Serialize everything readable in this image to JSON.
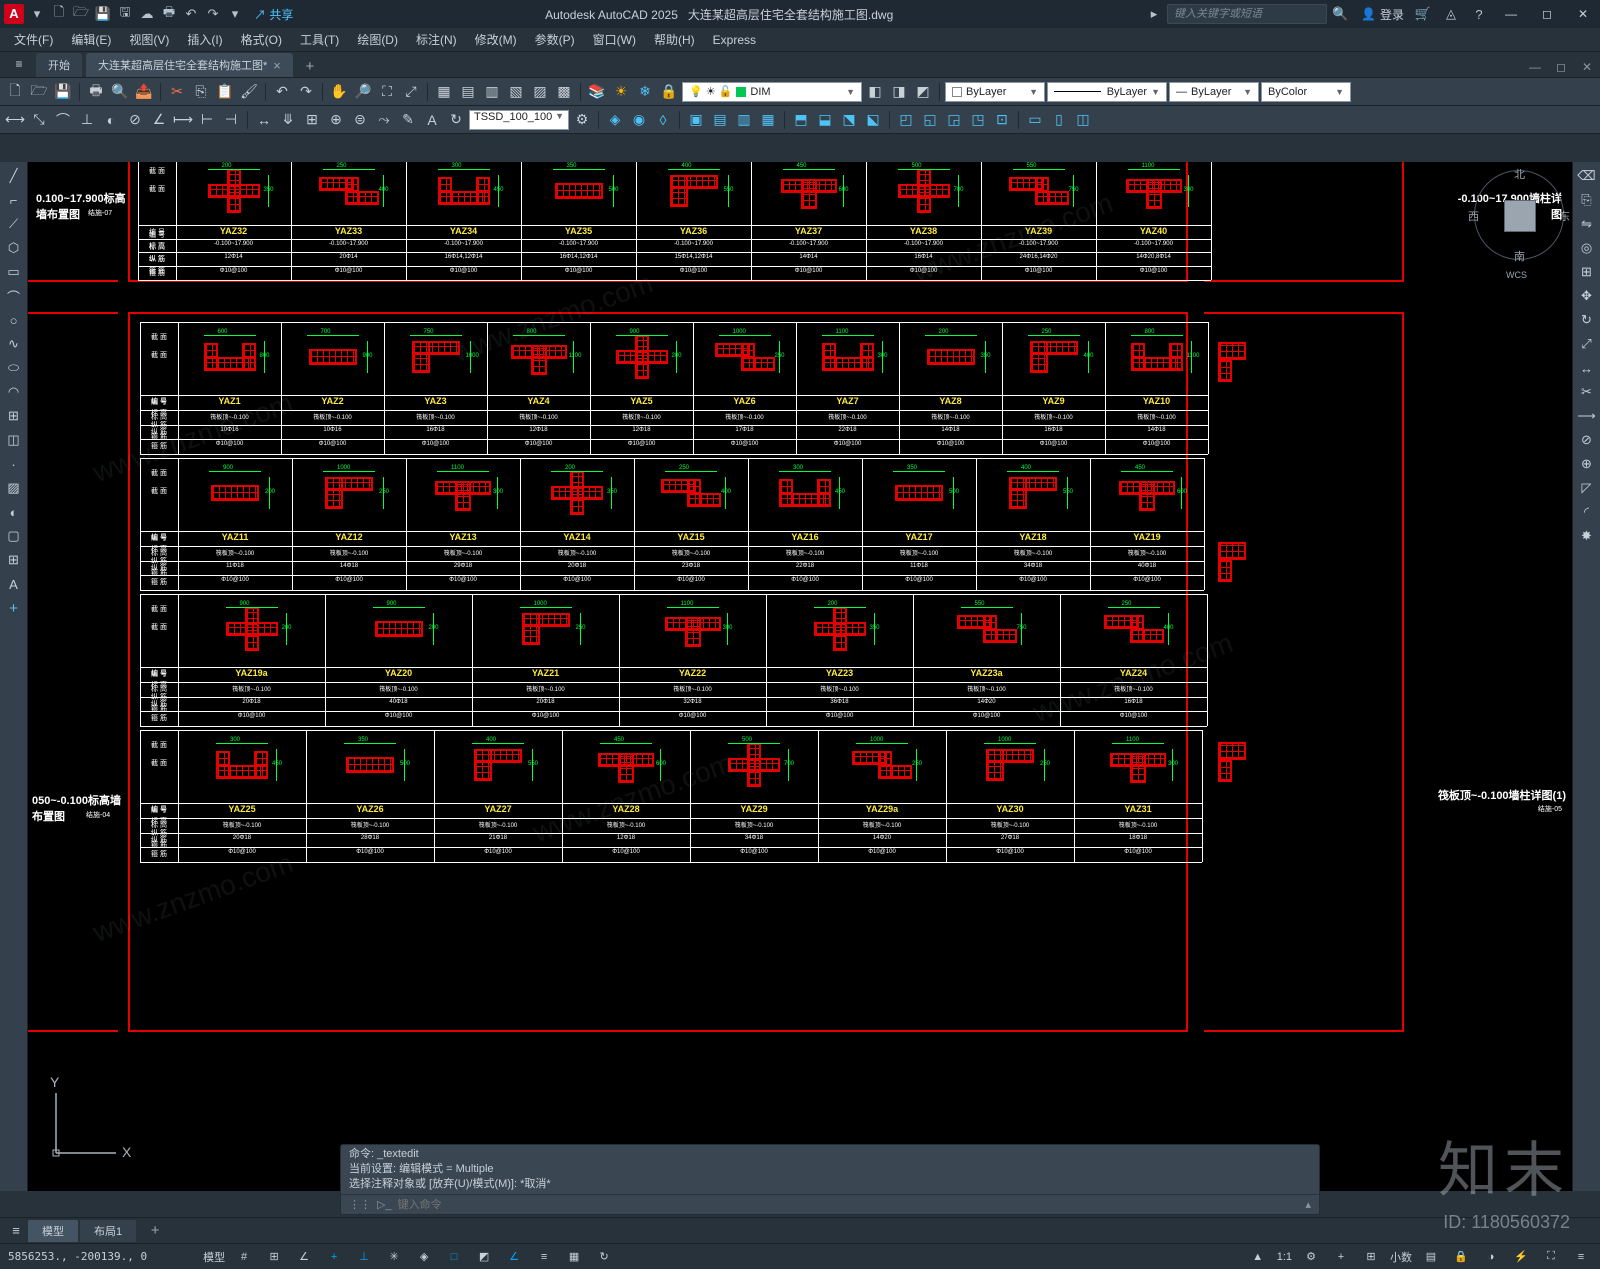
{
  "app": {
    "badge": "A",
    "title_product": "Autodesk AutoCAD 2025",
    "title_file": "大连某超高层住宅全套结构施工图.dwg",
    "search_placeholder": "键入关键字或短语",
    "login": "登录",
    "share": "共享"
  },
  "menus": [
    "文件(F)",
    "编辑(E)",
    "视图(V)",
    "插入(I)",
    "格式(O)",
    "工具(T)",
    "绘图(D)",
    "标注(N)",
    "修改(M)",
    "参数(P)",
    "窗口(W)",
    "帮助(H)",
    "Express"
  ],
  "filetabs": {
    "home": "开始",
    "active": "大连某超高层住宅全套结构施工图*"
  },
  "layer": {
    "name": "DIM",
    "current": "ByLayer",
    "linetype": "ByLayer",
    "lineweight": "ByLayer",
    "color": "ByColor",
    "tssd": "TSSD_100_100"
  },
  "viewcube": {
    "n": "北",
    "s": "南",
    "e": "东",
    "w": "西",
    "wcs": "WCS"
  },
  "ucs": {
    "x": "X",
    "y": "Y"
  },
  "cmd": {
    "h1": "命令: _textedit",
    "h2": "当前设置: 编辑模式 = Multiple",
    "h3": "选择注释对象或 [放弃(U)/模式(M)]: *取消*",
    "prompt": "键入命令"
  },
  "layout_tabs": {
    "model": "模型",
    "layout1": "布局1"
  },
  "status": {
    "coords": "5856253., -200139., 0",
    "model": "模型",
    "scale": "1:1",
    "decimal": "小数"
  },
  "sheets": {
    "left_top": "0.100~17.900标高墙布置图",
    "left_bot": "050~-0.100标高墙布置图",
    "right_top": "-0.100~17.900墙柱详图",
    "right_bot": "筏板顶~-0.100墙柱详图(1)",
    "code_top": "结施-07",
    "code_bot": "结施-04",
    "code_r": "结施-05"
  },
  "row_hdrs": [
    "截 面",
    "编 号",
    "标 高",
    "纵 筋",
    "箍 筋"
  ],
  "cols_top": [
    {
      "id": "YAZ32",
      "e": "-0.100~17.900",
      "r": "12Φ14",
      "s": "Φ10@100"
    },
    {
      "id": "YAZ33",
      "e": "-0.100~17.900",
      "r": "20Φ14",
      "s": "Φ10@100"
    },
    {
      "id": "YAZ34",
      "e": "-0.100~17.900",
      "r": "16Φ14,12Φ14",
      "s": "Φ10@100"
    },
    {
      "id": "YAZ35",
      "e": "-0.100~17.900",
      "r": "16Φ14,12Φ14",
      "s": "Φ10@100"
    },
    {
      "id": "YAZ36",
      "e": "-0.100~17.900",
      "r": "15Φ14,12Φ14",
      "s": "Φ10@100"
    },
    {
      "id": "YAZ37",
      "e": "-0.100~17.900",
      "r": "14Φ14",
      "s": "Φ10@100"
    },
    {
      "id": "YAZ38",
      "e": "-0.100~17.900",
      "r": "16Φ14",
      "s": "Φ10@100"
    },
    {
      "id": "YAZ39",
      "e": "-0.100~17.900",
      "r": "24Φ16,14Φ20",
      "s": "Φ10@100"
    },
    {
      "id": "YAZ40",
      "e": "-0.100~17.900",
      "r": "14Φ20,8Φ14",
      "s": "Φ10@100"
    }
  ],
  "rows_main": [
    [
      {
        "id": "YAZ1",
        "e": "筏板顶~-0.100",
        "r": "10Φ16",
        "s": "Φ10@100"
      },
      {
        "id": "YAZ2",
        "e": "筏板顶~-0.100",
        "r": "10Φ16",
        "s": "Φ10@100"
      },
      {
        "id": "YAZ3",
        "e": "筏板顶~-0.100",
        "r": "16Φ18",
        "s": "Φ10@100"
      },
      {
        "id": "YAZ4",
        "e": "筏板顶~-0.100",
        "r": "12Φ18",
        "s": "Φ10@100"
      },
      {
        "id": "YAZ5",
        "e": "筏板顶~-0.100",
        "r": "12Φ18",
        "s": "Φ10@100"
      },
      {
        "id": "YAZ6",
        "e": "筏板顶~-0.100",
        "r": "17Φ18",
        "s": "Φ10@100"
      },
      {
        "id": "YAZ7",
        "e": "筏板顶~-0.100",
        "r": "22Φ18",
        "s": "Φ10@100"
      },
      {
        "id": "YAZ8",
        "e": "筏板顶~-0.100",
        "r": "14Φ18",
        "s": "Φ10@100"
      },
      {
        "id": "YAZ9",
        "e": "筏板顶~-0.100",
        "r": "16Φ18",
        "s": "Φ10@100"
      },
      {
        "id": "YAZ10",
        "e": "筏板顶~-0.100",
        "r": "14Φ18",
        "s": "Φ10@100"
      }
    ],
    [
      {
        "id": "YAZ11",
        "e": "筏板顶~-0.100",
        "r": "11Φ18",
        "s": "Φ10@100"
      },
      {
        "id": "YAZ12",
        "e": "筏板顶~-0.100",
        "r": "14Φ18",
        "s": "Φ10@100"
      },
      {
        "id": "YAZ13",
        "e": "筏板顶~-0.100",
        "r": "29Φ18",
        "s": "Φ10@100"
      },
      {
        "id": "YAZ14",
        "e": "筏板顶~-0.100",
        "r": "20Φ18",
        "s": "Φ10@100"
      },
      {
        "id": "YAZ15",
        "e": "筏板顶~-0.100",
        "r": "23Φ18",
        "s": "Φ10@100"
      },
      {
        "id": "YAZ16",
        "e": "筏板顶~-0.100",
        "r": "22Φ18",
        "s": "Φ10@100"
      },
      {
        "id": "YAZ17",
        "e": "筏板顶~-0.100",
        "r": "11Φ18",
        "s": "Φ10@100"
      },
      {
        "id": "YAZ18",
        "e": "筏板顶~-0.100",
        "r": "34Φ18",
        "s": "Φ10@100"
      },
      {
        "id": "YAZ19",
        "e": "筏板顶~-0.100",
        "r": "40Φ18",
        "s": "Φ10@100"
      }
    ],
    [
      {
        "id": "YAZ19a",
        "e": "筏板顶~-0.100",
        "r": "20Φ18",
        "s": "Φ10@100"
      },
      {
        "id": "YAZ20",
        "e": "筏板顶~-0.100",
        "r": "40Φ18",
        "s": "Φ10@100"
      },
      {
        "id": "YAZ21",
        "e": "筏板顶~-0.100",
        "r": "20Φ18",
        "s": "Φ10@100"
      },
      {
        "id": "YAZ22",
        "e": "筏板顶~-0.100",
        "r": "32Φ18",
        "s": "Φ10@100"
      },
      {
        "id": "YAZ23",
        "e": "筏板顶~-0.100",
        "r": "36Φ18",
        "s": "Φ10@100"
      },
      {
        "id": "YAZ23a",
        "e": "筏板顶~-0.100",
        "r": "14Φ20",
        "s": "Φ10@100"
      },
      {
        "id": "YAZ24",
        "e": "筏板顶~-0.100",
        "r": "16Φ18",
        "s": "Φ10@100"
      }
    ],
    [
      {
        "id": "YAZ25",
        "e": "筏板顶~-0.100",
        "r": "20Φ18",
        "s": "Φ10@100"
      },
      {
        "id": "YAZ26",
        "e": "筏板顶~-0.100",
        "r": "28Φ18",
        "s": "Φ10@100"
      },
      {
        "id": "YAZ27",
        "e": "筏板顶~-0.100",
        "r": "21Φ18",
        "s": "Φ10@100"
      },
      {
        "id": "YAZ28",
        "e": "筏板顶~-0.100",
        "r": "12Φ18",
        "s": "Φ10@100"
      },
      {
        "id": "YAZ29",
        "e": "筏板顶~-0.100",
        "r": "34Φ18",
        "s": "Φ10@100"
      },
      {
        "id": "YAZ29a",
        "e": "筏板顶~-0.100",
        "r": "14Φ20",
        "s": "Φ10@100"
      },
      {
        "id": "YAZ30",
        "e": "筏板顶~-0.100",
        "r": "27Φ18",
        "s": "Φ10@100"
      },
      {
        "id": "YAZ31",
        "e": "筏板顶~-0.100",
        "r": "18Φ18",
        "s": "Φ10@100"
      }
    ]
  ],
  "dims": [
    "200",
    "250",
    "300",
    "350",
    "400",
    "450",
    "500",
    "550",
    "600",
    "700",
    "750",
    "800",
    "900",
    "1000",
    "1100"
  ],
  "colors": {
    "frame": "#e40000",
    "stirrup": "#e40000",
    "dim": "#00ff41",
    "label": "#ffeb3b",
    "grid": "#ffffff",
    "bg": "#000000"
  },
  "watermark": {
    "text": "知末",
    "id": "ID: 1180560372",
    "url": "www.znzmo.com"
  }
}
